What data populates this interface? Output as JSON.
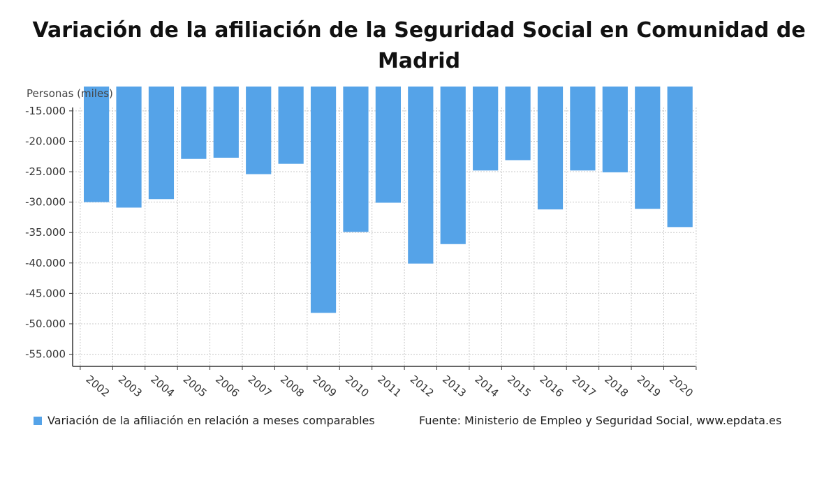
{
  "chart_data": {
    "type": "bar",
    "title": "Variación de la afiliación de la Seguridad Social en Comunidad de Madrid",
    "ylabel": "Personas (miles)",
    "categories": [
      "2002",
      "2003",
      "2004",
      "2005",
      "2006",
      "2007",
      "2008",
      "2009",
      "2010",
      "2011",
      "2012",
      "2013",
      "2014",
      "2015",
      "2016",
      "2017",
      "2018",
      "2019",
      "2020"
    ],
    "series": [
      {
        "name": "Variación de la afiliación en relación a meses comparables",
        "values": [
          -30000,
          -30900,
          -29500,
          -22900,
          -22700,
          -25400,
          -23700,
          -48200,
          -34900,
          -30100,
          -40100,
          -36900,
          -24800,
          -23100,
          -31200,
          -24800,
          -25100,
          -31100,
          -34100
        ]
      }
    ],
    "yticks": [
      "-15.000",
      "-20.000",
      "-25.000",
      "-30.000",
      "-35.000",
      "-40.000",
      "-45.000",
      "-50.000",
      "-55.000"
    ],
    "ytick_values": [
      -15000,
      -20000,
      -25000,
      -30000,
      -35000,
      -40000,
      -45000,
      -50000,
      -55000
    ],
    "ylim": [
      -57000,
      -11000
    ],
    "grid": true,
    "legend_position": "bottom-left",
    "source": "Fuente: Ministerio de Empleo y Seguridad Social, www.epdata.es",
    "colors": {
      "bar": "#55a3e8",
      "grid": "#c8c8c8",
      "axis": "#333333"
    }
  }
}
